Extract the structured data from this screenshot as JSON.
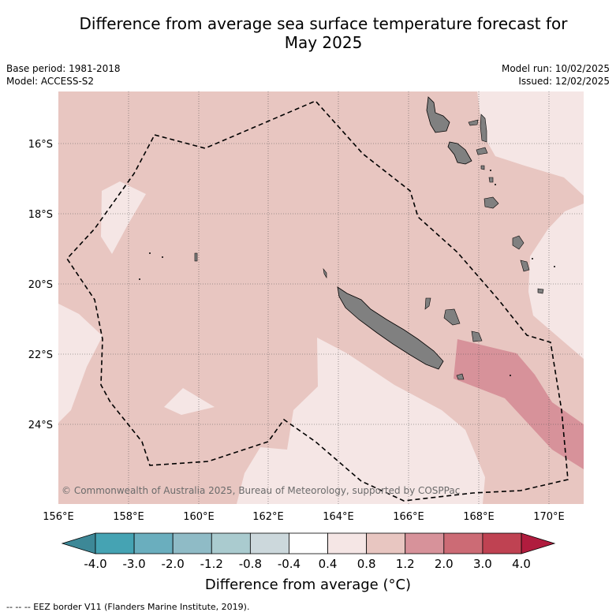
{
  "title_line1": "Difference from average sea surface temperature forecast for",
  "title_line2": "May 2025",
  "base_period": "Base period: 1981-2018",
  "model": "Model: ACCESS-S2",
  "model_run": "Model run: 10/02/2025",
  "issued": "Issued: 12/02/2025",
  "lon_ticks": [
    "156°E",
    "158°E",
    "160°E",
    "162°E",
    "164°E",
    "166°E",
    "168°E",
    "170°E"
  ],
  "lat_ticks": [
    "16°S",
    "18°S",
    "20°S",
    "22°S",
    "24°S"
  ],
  "copyright": "© Commonwealth of Australia 2025, Bureau of Meteorology, supported by COSPPac",
  "colorbar": {
    "title": "Difference from average (°C)",
    "labels": [
      "-4.0",
      "-3.0",
      "-2.0",
      "-1.2",
      "-0.8",
      "-0.4",
      "0.4",
      "0.8",
      "1.2",
      "2.0",
      "3.0",
      "4.0"
    ],
    "colors": [
      "#45a3b3",
      "#6aaebe",
      "#8fbbc6",
      "#aacbcf",
      "#ccd8dc",
      "#ffffff",
      "#f5e6e5",
      "#e8c6c1",
      "#d7929a",
      "#cc6b75",
      "#bf4252"
    ],
    "under_color": "#3d8897",
    "over_color": "#b01c3e"
  },
  "footnote": "-- -- -- EEZ border V11 (Flanders Marine Institute, 2019)."
}
